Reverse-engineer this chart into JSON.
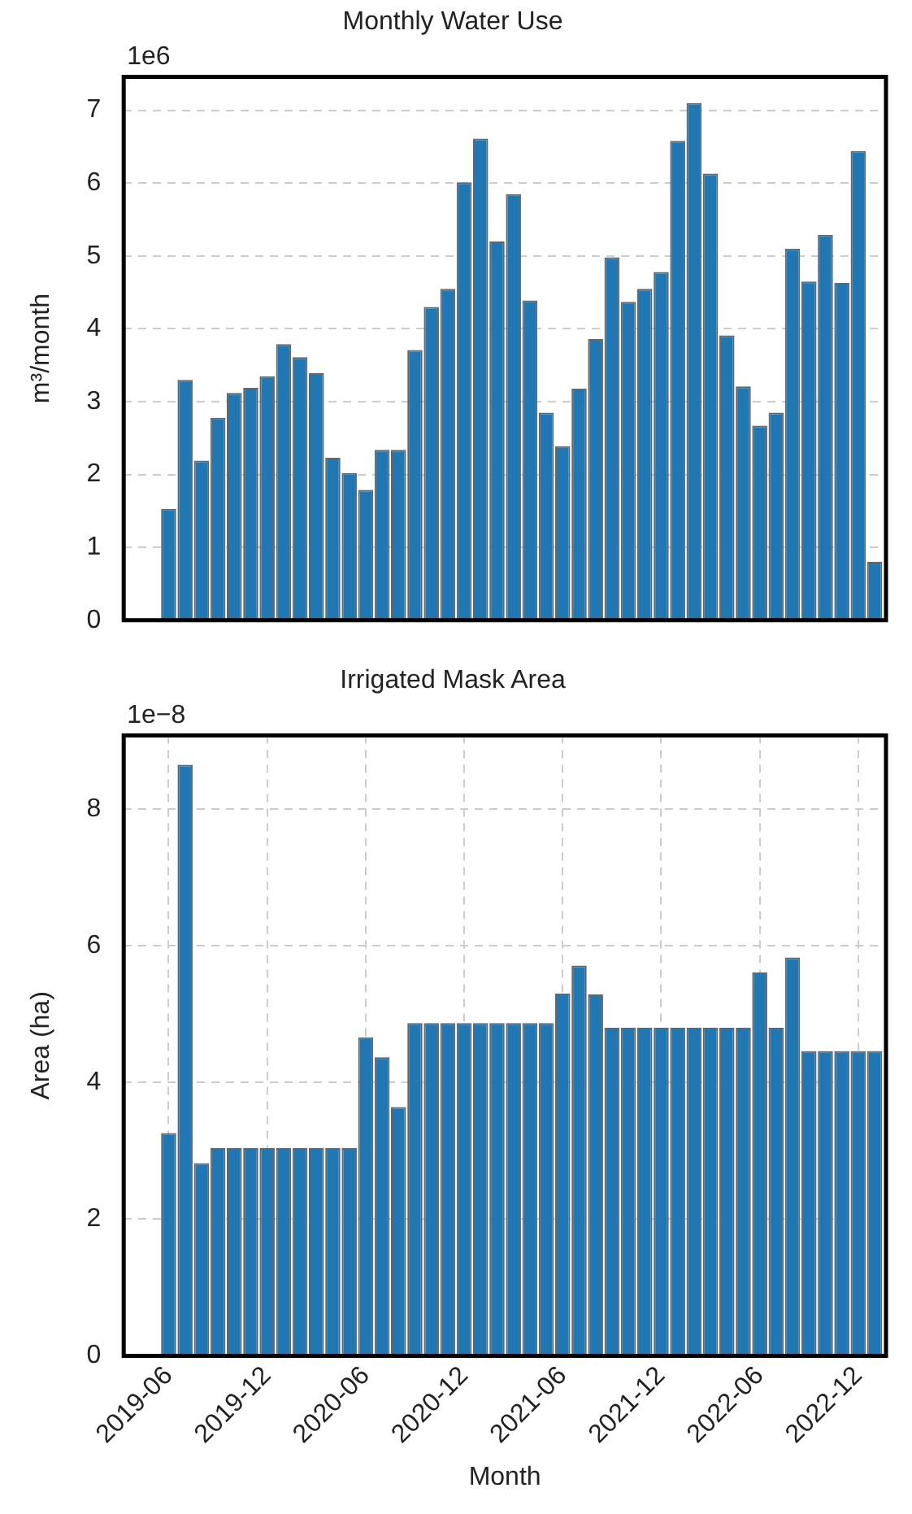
{
  "chart_data": [
    {
      "type": "bar",
      "title": "Monthly Water Use",
      "ylabel": "m³/month",
      "annotations": [
        "1e6"
      ],
      "x": [
        "2019-06",
        "2019-07",
        "2019-08",
        "2019-09",
        "2019-10",
        "2019-11",
        "2019-12",
        "2020-01",
        "2020-02",
        "2020-03",
        "2020-04",
        "2020-05",
        "2020-06",
        "2020-07",
        "2020-08",
        "2020-09",
        "2020-10",
        "2020-11",
        "2020-12",
        "2021-01",
        "2021-02",
        "2021-03",
        "2021-04",
        "2021-05",
        "2021-06",
        "2021-07",
        "2021-08",
        "2021-09",
        "2021-10",
        "2021-11",
        "2021-12",
        "2022-01",
        "2022-02",
        "2022-03",
        "2022-04",
        "2022-05",
        "2022-06",
        "2022-07",
        "2022-08",
        "2022-09",
        "2022-10",
        "2022-11",
        "2022-12",
        "2023-01"
      ],
      "values": [
        1.53,
        3.3,
        2.19,
        2.78,
        3.12,
        3.19,
        3.35,
        3.79,
        3.61,
        3.39,
        2.23,
        2.02,
        1.79,
        2.34,
        2.34,
        3.71,
        4.3,
        4.55,
        6.01,
        6.61,
        5.2,
        5.85,
        4.39,
        2.85,
        2.39,
        3.18,
        3.86,
        4.98,
        4.37,
        4.55,
        4.78,
        6.58,
        7.1,
        6.13,
        3.91,
        3.21,
        2.67,
        2.85,
        5.1,
        4.65,
        5.29,
        4.63,
        6.44,
        0.8
      ],
      "color": "#1f77b4",
      "xlim": [
        "2019-03-09",
        "2023-01-22"
      ],
      "ylim": [
        0,
        7.46
      ],
      "xticks": [
        {
          "value": "2019-06",
          "label": null
        },
        {
          "value": "2019-12",
          "label": null
        },
        {
          "value": "2020-06",
          "label": null
        },
        {
          "value": "2020-12",
          "label": null
        },
        {
          "value": "2021-06",
          "label": null
        },
        {
          "value": "2021-12",
          "label": null
        },
        {
          "value": "2022-06",
          "label": null
        },
        {
          "value": "2022-12",
          "label": null
        }
      ],
      "yticks": [
        0,
        1,
        2,
        3,
        4,
        5,
        6,
        7
      ],
      "grid": "y",
      "tick_labels": "y",
      "legend": false
    },
    {
      "type": "bar",
      "title": "Irrigated Mask Area",
      "xlabel": "Month",
      "ylabel": "Area (ha)",
      "annotations": [
        "1e−8"
      ],
      "x": [
        "2019-06",
        "2019-07",
        "2019-08",
        "2019-09",
        "2019-10",
        "2019-11",
        "2019-12",
        "2020-01",
        "2020-02",
        "2020-03",
        "2020-04",
        "2020-05",
        "2020-06",
        "2020-07",
        "2020-08",
        "2020-09",
        "2020-10",
        "2020-11",
        "2020-12",
        "2021-01",
        "2021-02",
        "2021-03",
        "2021-04",
        "2021-05",
        "2021-06",
        "2021-07",
        "2021-08",
        "2021-09",
        "2021-10",
        "2021-11",
        "2021-12",
        "2022-01",
        "2022-02",
        "2022-03",
        "2022-04",
        "2022-05",
        "2022-06",
        "2022-07",
        "2022-08",
        "2022-09",
        "2022-10",
        "2022-11",
        "2022-12",
        "2023-01"
      ],
      "values": [
        3.26,
        8.65,
        2.82,
        3.04,
        3.04,
        3.04,
        3.04,
        3.04,
        3.04,
        3.04,
        3.04,
        3.04,
        4.66,
        4.37,
        3.64,
        4.87,
        4.87,
        4.87,
        4.87,
        4.87,
        4.87,
        4.87,
        4.87,
        4.87,
        5.3,
        5.71,
        5.29,
        4.8,
        4.8,
        4.8,
        4.8,
        4.8,
        4.8,
        4.8,
        4.8,
        4.8,
        5.61,
        4.8,
        5.83,
        4.46,
        4.46,
        4.46,
        4.46,
        4.46
      ],
      "color": "#1f77b4",
      "xlim": [
        "2019-03-09",
        "2023-01-22"
      ],
      "ylim": [
        0,
        9.08
      ],
      "xticks": [
        "2019-06",
        "2019-12",
        "2020-06",
        "2020-12",
        "2021-06",
        "2021-12",
        "2022-06",
        "2022-12"
      ],
      "yticks": [
        0,
        2,
        4,
        6,
        8
      ],
      "grid": true,
      "legend": false
    }
  ]
}
